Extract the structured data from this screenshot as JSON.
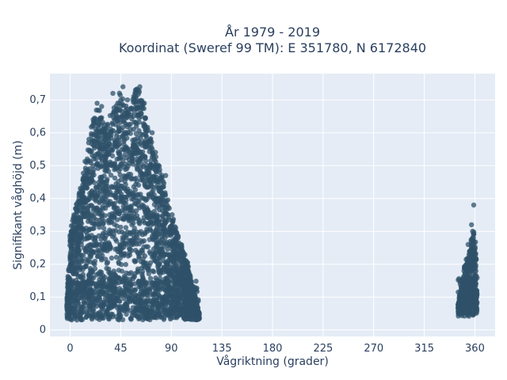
{
  "chart_data": {
    "type": "scatter",
    "title_lines": [
      "År 1979 - 2019",
      "Koordinat (Sweref 99 TM): E 351780, N 6172840"
    ],
    "xlabel": "Vågriktning (grader)",
    "ylabel": "Signifikant våghöjd (m)",
    "xlim": [
      -18,
      378
    ],
    "ylim": [
      -0.02,
      0.78
    ],
    "x_ticks": [
      0,
      45,
      90,
      135,
      180,
      225,
      270,
      315,
      360
    ],
    "x_tick_labels": [
      "0",
      "45",
      "90",
      "135",
      "180",
      "225",
      "270",
      "315",
      "360"
    ],
    "y_ticks": [
      0,
      0.1,
      0.2,
      0.3,
      0.4,
      0.5,
      0.6,
      0.7
    ],
    "y_tick_labels": [
      "0",
      "0,1",
      "0,2",
      "0,3",
      "0,4",
      "0,5",
      "0,6",
      "0,7"
    ],
    "grid": true,
    "marker_color": "#2f5269",
    "plot_bg": "#e5ecf6",
    "clusters": [
      {
        "x_range": [
          -3,
          115
        ],
        "y_min": 0.03,
        "envelope": [
          [
            -3,
            0.1
          ],
          [
            0,
            0.3
          ],
          [
            5,
            0.38
          ],
          [
            10,
            0.45
          ],
          [
            15,
            0.55
          ],
          [
            20,
            0.64
          ],
          [
            25,
            0.69
          ],
          [
            30,
            0.62
          ],
          [
            35,
            0.66
          ],
          [
            40,
            0.69
          ],
          [
            45,
            0.73
          ],
          [
            50,
            0.68
          ],
          [
            55,
            0.7
          ],
          [
            60,
            0.74
          ],
          [
            65,
            0.7
          ],
          [
            70,
            0.6
          ],
          [
            75,
            0.55
          ],
          [
            80,
            0.5
          ],
          [
            85,
            0.42
          ],
          [
            90,
            0.36
          ],
          [
            95,
            0.3
          ],
          [
            100,
            0.25
          ],
          [
            105,
            0.2
          ],
          [
            110,
            0.12
          ],
          [
            115,
            0.05
          ]
        ],
        "outliers": [
          [
            28,
            0.68
          ],
          [
            38,
            0.72
          ],
          [
            47,
            0.74
          ],
          [
            62,
            0.74
          ],
          [
            58,
            0.73
          ],
          [
            24,
            0.69
          ],
          [
            51,
            0.7
          ],
          [
            66,
            0.69
          ],
          [
            73,
            0.6
          ],
          [
            85,
            0.47
          ]
        ]
      },
      {
        "x_range": [
          345,
          362
        ],
        "y_min": 0.04,
        "envelope": [
          [
            345,
            0.08
          ],
          [
            348,
            0.14
          ],
          [
            351,
            0.2
          ],
          [
            354,
            0.24
          ],
          [
            357,
            0.28
          ],
          [
            359,
            0.3
          ],
          [
            361,
            0.26
          ],
          [
            362,
            0.1
          ]
        ],
        "outliers": [
          [
            359,
            0.38
          ],
          [
            357,
            0.32
          ],
          [
            358,
            0.3
          ],
          [
            354,
            0.26
          ]
        ]
      }
    ]
  }
}
